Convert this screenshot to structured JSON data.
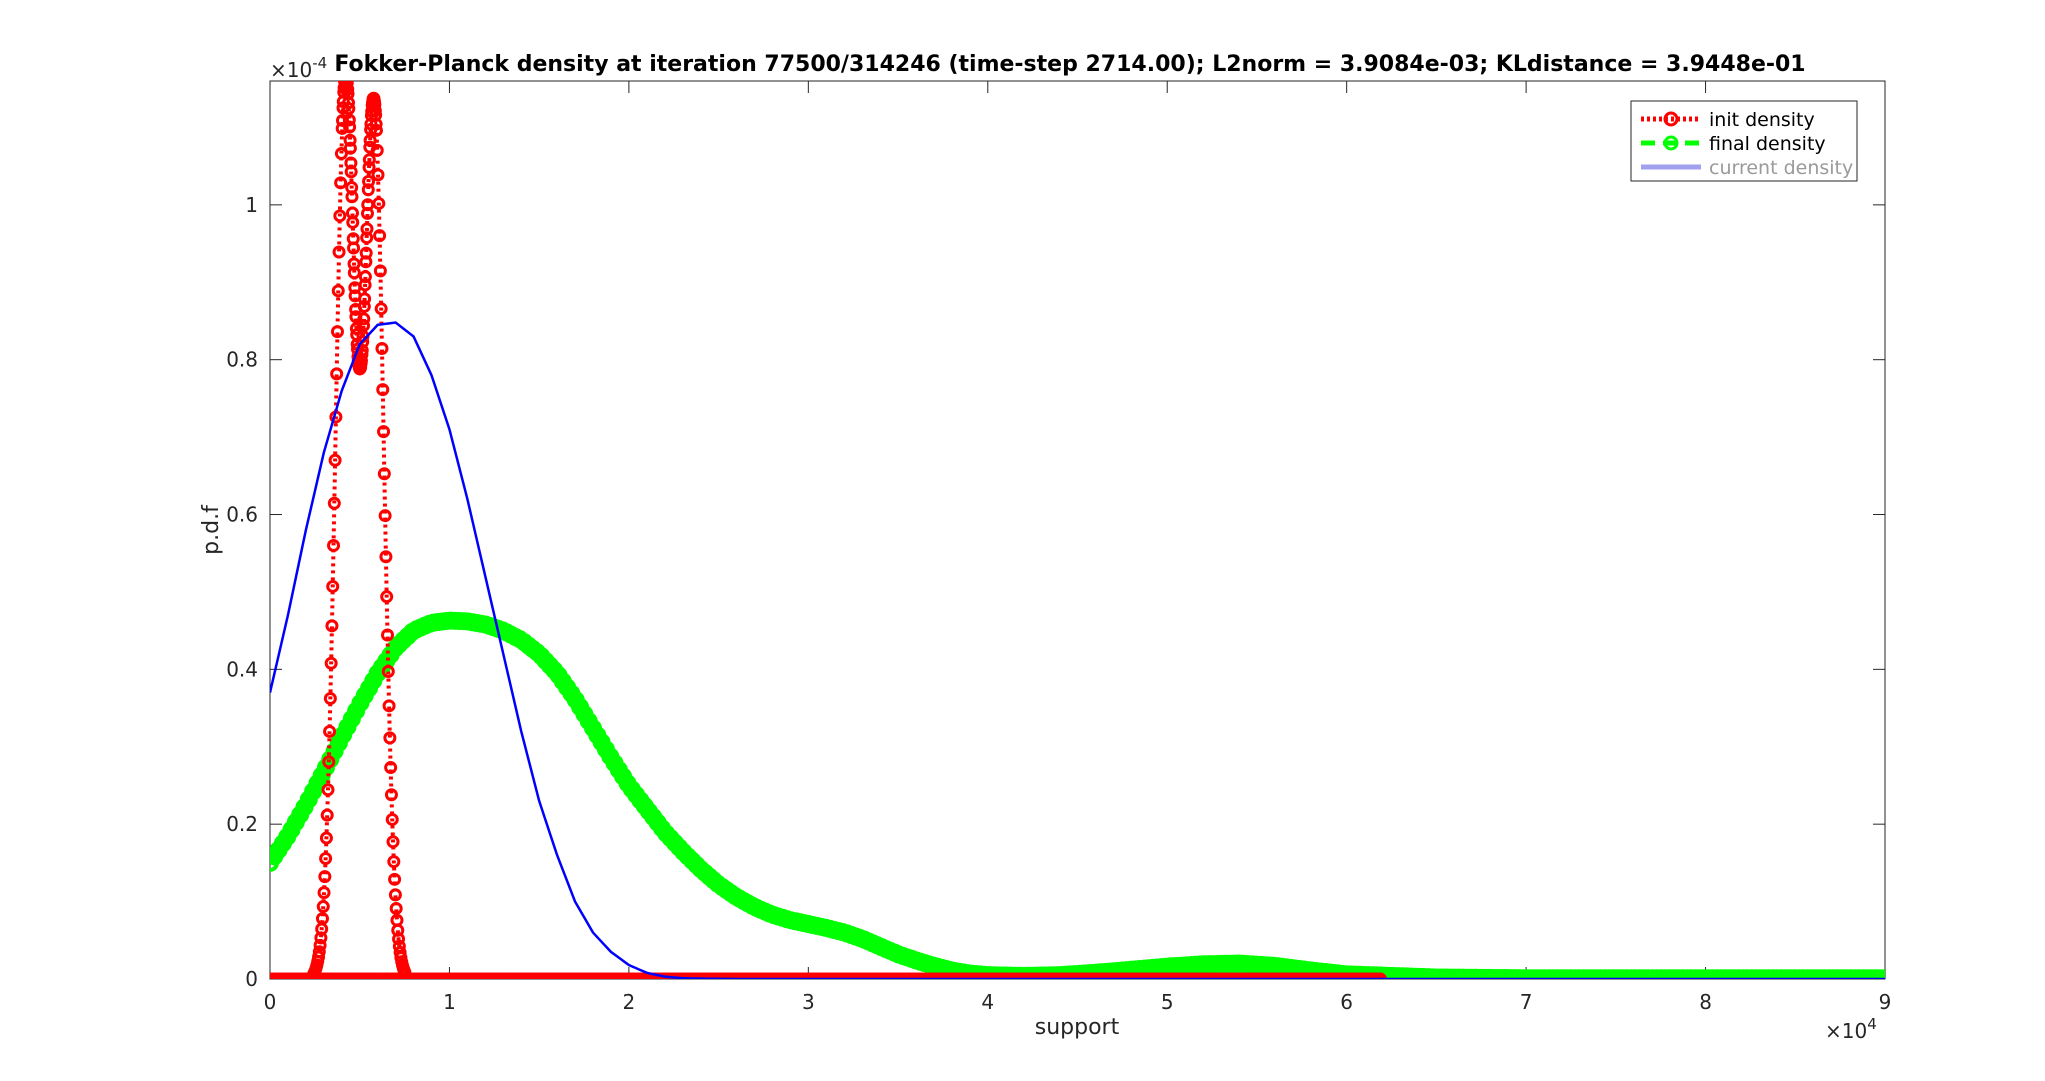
{
  "chart_data": {
    "type": "line",
    "title": "Fokker-Planck density at iteration 77500/314246 (time-step 2714.00); L2norm = 3.9084e-03; KLdistance = 3.9448e-01",
    "xlabel": "support",
    "ylabel": "p.d.f",
    "x_exponent_label": "×10",
    "x_exponent_power": "4",
    "y_exponent_label": "×10",
    "y_exponent_power": "-4",
    "xlim": [
      0,
      90000
    ],
    "ylim": [
      0,
      0.000116
    ],
    "x_ticks": [
      0,
      10000,
      20000,
      30000,
      40000,
      50000,
      60000,
      70000,
      80000,
      90000
    ],
    "x_tick_labels": [
      "0",
      "1",
      "2",
      "3",
      "4",
      "5",
      "6",
      "7",
      "8",
      "9"
    ],
    "y_ticks": [
      0,
      2e-05,
      4e-05,
      6e-05,
      8e-05,
      0.0001
    ],
    "y_tick_labels": [
      "0",
      "0.2",
      "0.4",
      "0.6",
      "0.8",
      "1"
    ],
    "grid": false,
    "legend_position": "top-right",
    "series": [
      {
        "name": "init density",
        "color": "#ff0000",
        "line_style": "dotted",
        "marker": "circle",
        "peaks": [
          {
            "center": 4200,
            "sigma": 550,
            "amplitude": 0.000115
          },
          {
            "center": 5800,
            "sigma": 550,
            "amplitude": 0.000112
          }
        ],
        "baseline": 0.0
      },
      {
        "name": "final density",
        "color": "#00ff00",
        "line_style": "dashed",
        "marker": "circle",
        "x": [
          0,
          1000,
          2000,
          3000,
          4000,
          5000,
          6000,
          7000,
          8000,
          9000,
          10000,
          11000,
          12000,
          13000,
          14000,
          15000,
          16000,
          17000,
          18000,
          19000,
          20000,
          21000,
          22000,
          23000,
          24000,
          25000,
          26000,
          27000,
          28000,
          29000,
          30000,
          31000,
          32000,
          33000,
          34000,
          35000,
          36000,
          37000,
          38000,
          39000,
          40000,
          42000,
          44000,
          46000,
          48000,
          50000,
          52000,
          54000,
          56000,
          58000,
          60000,
          65000,
          70000,
          75000,
          80000,
          85000,
          90000
        ],
        "y": [
          1.5e-05,
          1.85e-05,
          2.25e-05,
          2.68e-05,
          3.12e-05,
          3.55e-05,
          3.95e-05,
          4.28e-05,
          4.5e-05,
          4.6e-05,
          4.63e-05,
          4.62e-05,
          4.58e-05,
          4.5e-05,
          4.38e-05,
          4.2e-05,
          3.95e-05,
          3.62e-05,
          3.24e-05,
          2.86e-05,
          2.5e-05,
          2.2e-05,
          1.9e-05,
          1.65e-05,
          1.42e-05,
          1.22e-05,
          1.06e-05,
          9.3e-06,
          8.3e-06,
          7.6e-06,
          7.1e-06,
          6.6e-06,
          6e-06,
          5.2e-06,
          4.2e-06,
          3.2e-06,
          2.4e-06,
          1.7e-06,
          1.1e-06,
          7e-07,
          5e-07,
          4e-07,
          5e-07,
          8e-07,
          1.2e-06,
          1.6e-06,
          1.9e-06,
          2e-06,
          1.7e-06,
          1.1e-06,
          6e-07,
          2e-07,
          1e-07,
          1e-07,
          1e-07,
          1e-07,
          1e-07
        ]
      },
      {
        "name": "current density",
        "color": "#0000ff",
        "line_style": "solid",
        "marker": "none",
        "x": [
          0,
          1000,
          2000,
          3000,
          4000,
          5000,
          6000,
          7000,
          8000,
          9000,
          10000,
          11000,
          12000,
          13000,
          14000,
          15000,
          16000,
          17000,
          18000,
          19000,
          20000,
          21000,
          22000,
          23000,
          24000,
          26000,
          30000,
          40000,
          50000,
          60000,
          70000,
          80000,
          90000
        ],
        "y": [
          3.7e-05,
          4.7e-05,
          5.8e-05,
          6.8e-05,
          7.6e-05,
          8.2e-05,
          8.45e-05,
          8.48e-05,
          8.3e-05,
          7.8e-05,
          7.1e-05,
          6.2e-05,
          5.2e-05,
          4.2e-05,
          3.2e-05,
          2.3e-05,
          1.6e-05,
          1e-05,
          6e-06,
          3.5e-06,
          1.8e-06,
          8e-07,
          3e-07,
          1e-07,
          5e-08,
          0.0,
          0.0,
          0.0,
          0.0,
          0.0,
          0.0,
          0.0,
          0.0
        ]
      }
    ]
  }
}
